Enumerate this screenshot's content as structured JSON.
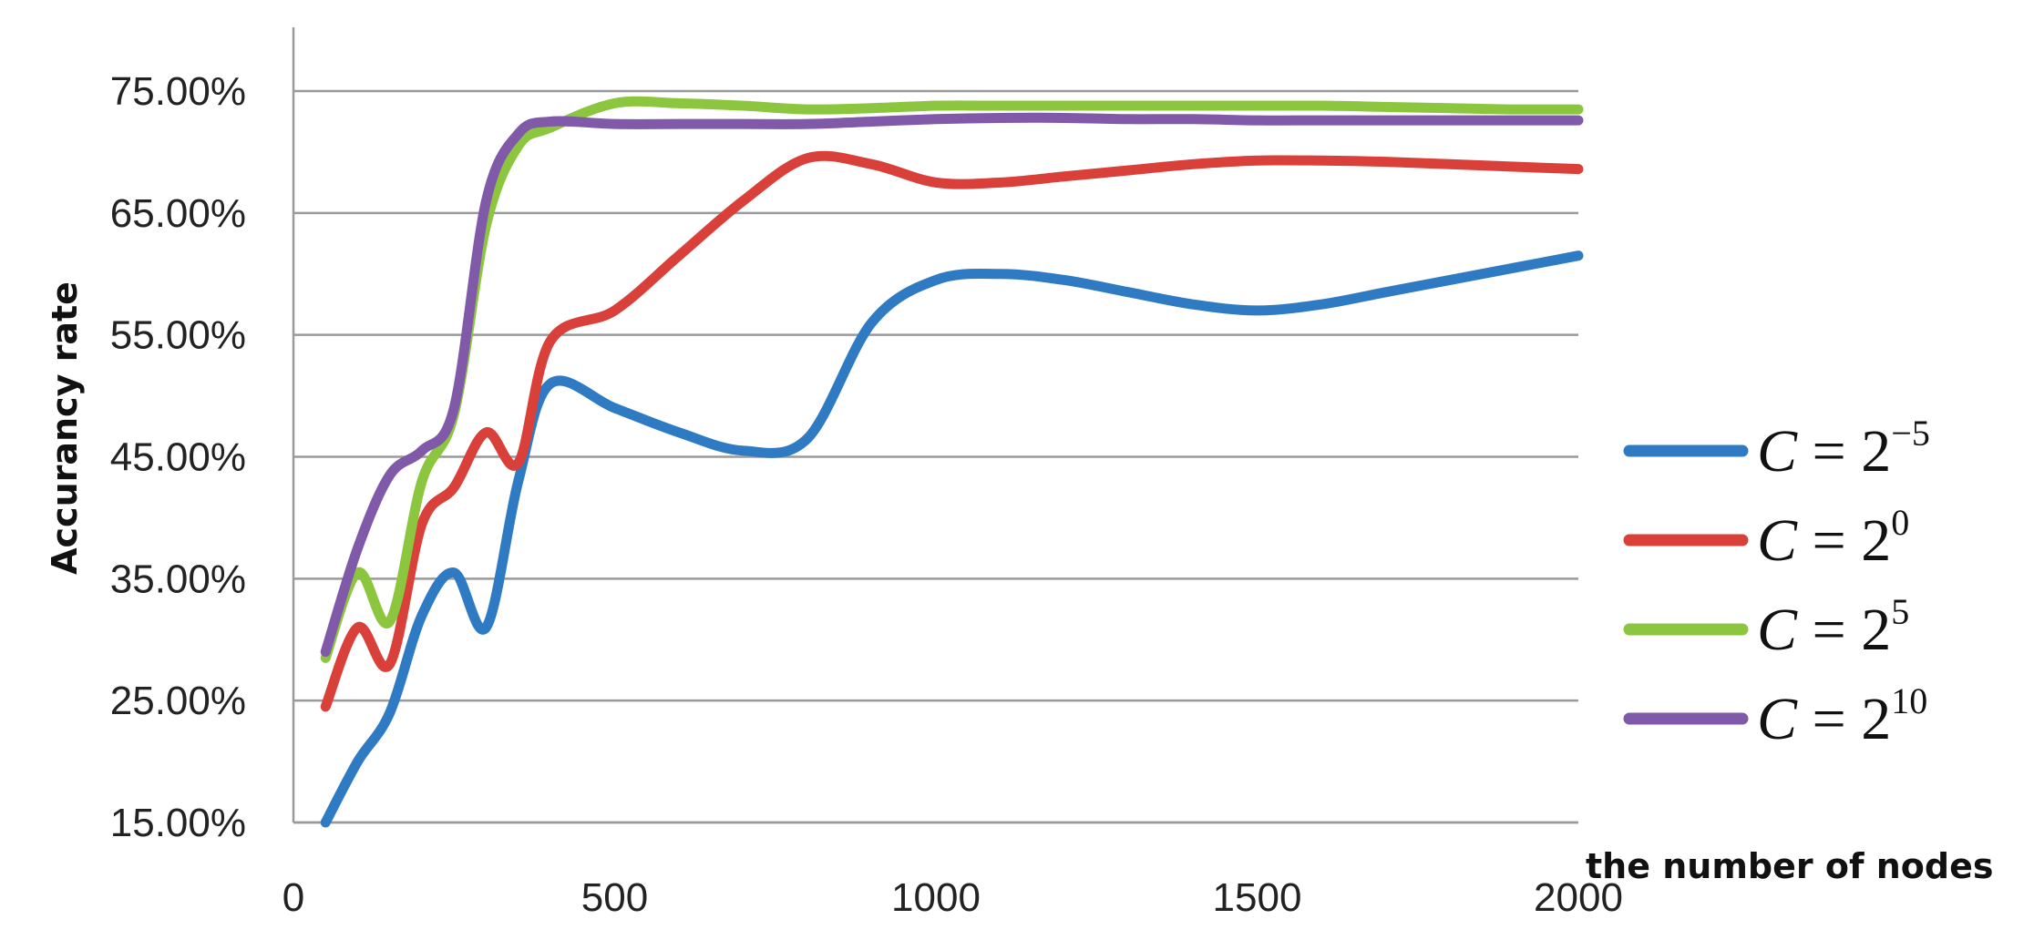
{
  "chart_data": {
    "type": "line",
    "title": "",
    "xlabel": "the number of nodes",
    "ylabel": "Accurancy rate",
    "xlim": [
      0,
      2000
    ],
    "ylim": [
      0.15,
      0.75
    ],
    "x_ticks": [
      "0",
      "500",
      "1000",
      "1500",
      "2000"
    ],
    "y_ticks": [
      "15.00%",
      "25.00%",
      "35.00%",
      "45.00%",
      "55.00%",
      "65.00%",
      "75.00%"
    ],
    "grid": "horizontal",
    "legend_position": "right",
    "series": [
      {
        "name": "C = 2^-5",
        "legend_base": "C = 2",
        "legend_exp": "−5",
        "color": "#2E7BC4",
        "x": [
          50,
          100,
          150,
          200,
          250,
          300,
          350,
          400,
          500,
          600,
          700,
          800,
          900,
          1000,
          1100,
          1200,
          1300,
          1400,
          1500,
          1600,
          1700,
          1800,
          1900,
          2000
        ],
        "y": [
          0.15,
          0.2,
          0.24,
          0.32,
          0.355,
          0.31,
          0.43,
          0.51,
          0.49,
          0.47,
          0.455,
          0.465,
          0.56,
          0.595,
          0.6,
          0.595,
          0.585,
          0.575,
          0.57,
          0.575,
          0.585,
          0.595,
          0.605,
          0.615
        ]
      },
      {
        "name": "C = 2^0",
        "legend_base": "C = 2",
        "legend_exp": "0",
        "color": "#D9403A",
        "x": [
          50,
          100,
          150,
          200,
          250,
          300,
          350,
          400,
          500,
          600,
          700,
          800,
          900,
          1000,
          1100,
          1200,
          1300,
          1400,
          1500,
          1600,
          1700,
          1800,
          1900,
          2000
        ],
        "y": [
          0.245,
          0.31,
          0.28,
          0.395,
          0.425,
          0.47,
          0.445,
          0.545,
          0.57,
          0.615,
          0.66,
          0.695,
          0.69,
          0.675,
          0.675,
          0.68,
          0.685,
          0.69,
          0.693,
          0.693,
          0.692,
          0.69,
          0.688,
          0.686
        ]
      },
      {
        "name": "C = 2^5",
        "legend_base": "C = 2",
        "legend_exp": "5",
        "color": "#8CC63F",
        "x": [
          50,
          100,
          150,
          200,
          250,
          300,
          350,
          400,
          500,
          600,
          700,
          800,
          900,
          1000,
          1100,
          1200,
          1300,
          1400,
          1500,
          1600,
          1700,
          1800,
          1900,
          2000
        ],
        "y": [
          0.285,
          0.355,
          0.315,
          0.43,
          0.485,
          0.64,
          0.705,
          0.72,
          0.74,
          0.74,
          0.738,
          0.735,
          0.736,
          0.738,
          0.738,
          0.738,
          0.738,
          0.738,
          0.738,
          0.738,
          0.737,
          0.736,
          0.735,
          0.735
        ]
      },
      {
        "name": "C = 2^10",
        "legend_base": "C = 2",
        "legend_exp": "10",
        "color": "#8059A8",
        "x": [
          50,
          100,
          150,
          200,
          250,
          300,
          350,
          400,
          500,
          600,
          700,
          800,
          900,
          1000,
          1100,
          1200,
          1300,
          1400,
          1500,
          1600,
          1700,
          1800,
          1900,
          2000
        ],
        "y": [
          0.29,
          0.375,
          0.435,
          0.455,
          0.49,
          0.66,
          0.715,
          0.725,
          0.723,
          0.723,
          0.723,
          0.723,
          0.725,
          0.727,
          0.728,
          0.728,
          0.727,
          0.727,
          0.726,
          0.726,
          0.726,
          0.726,
          0.726,
          0.726
        ]
      }
    ]
  }
}
